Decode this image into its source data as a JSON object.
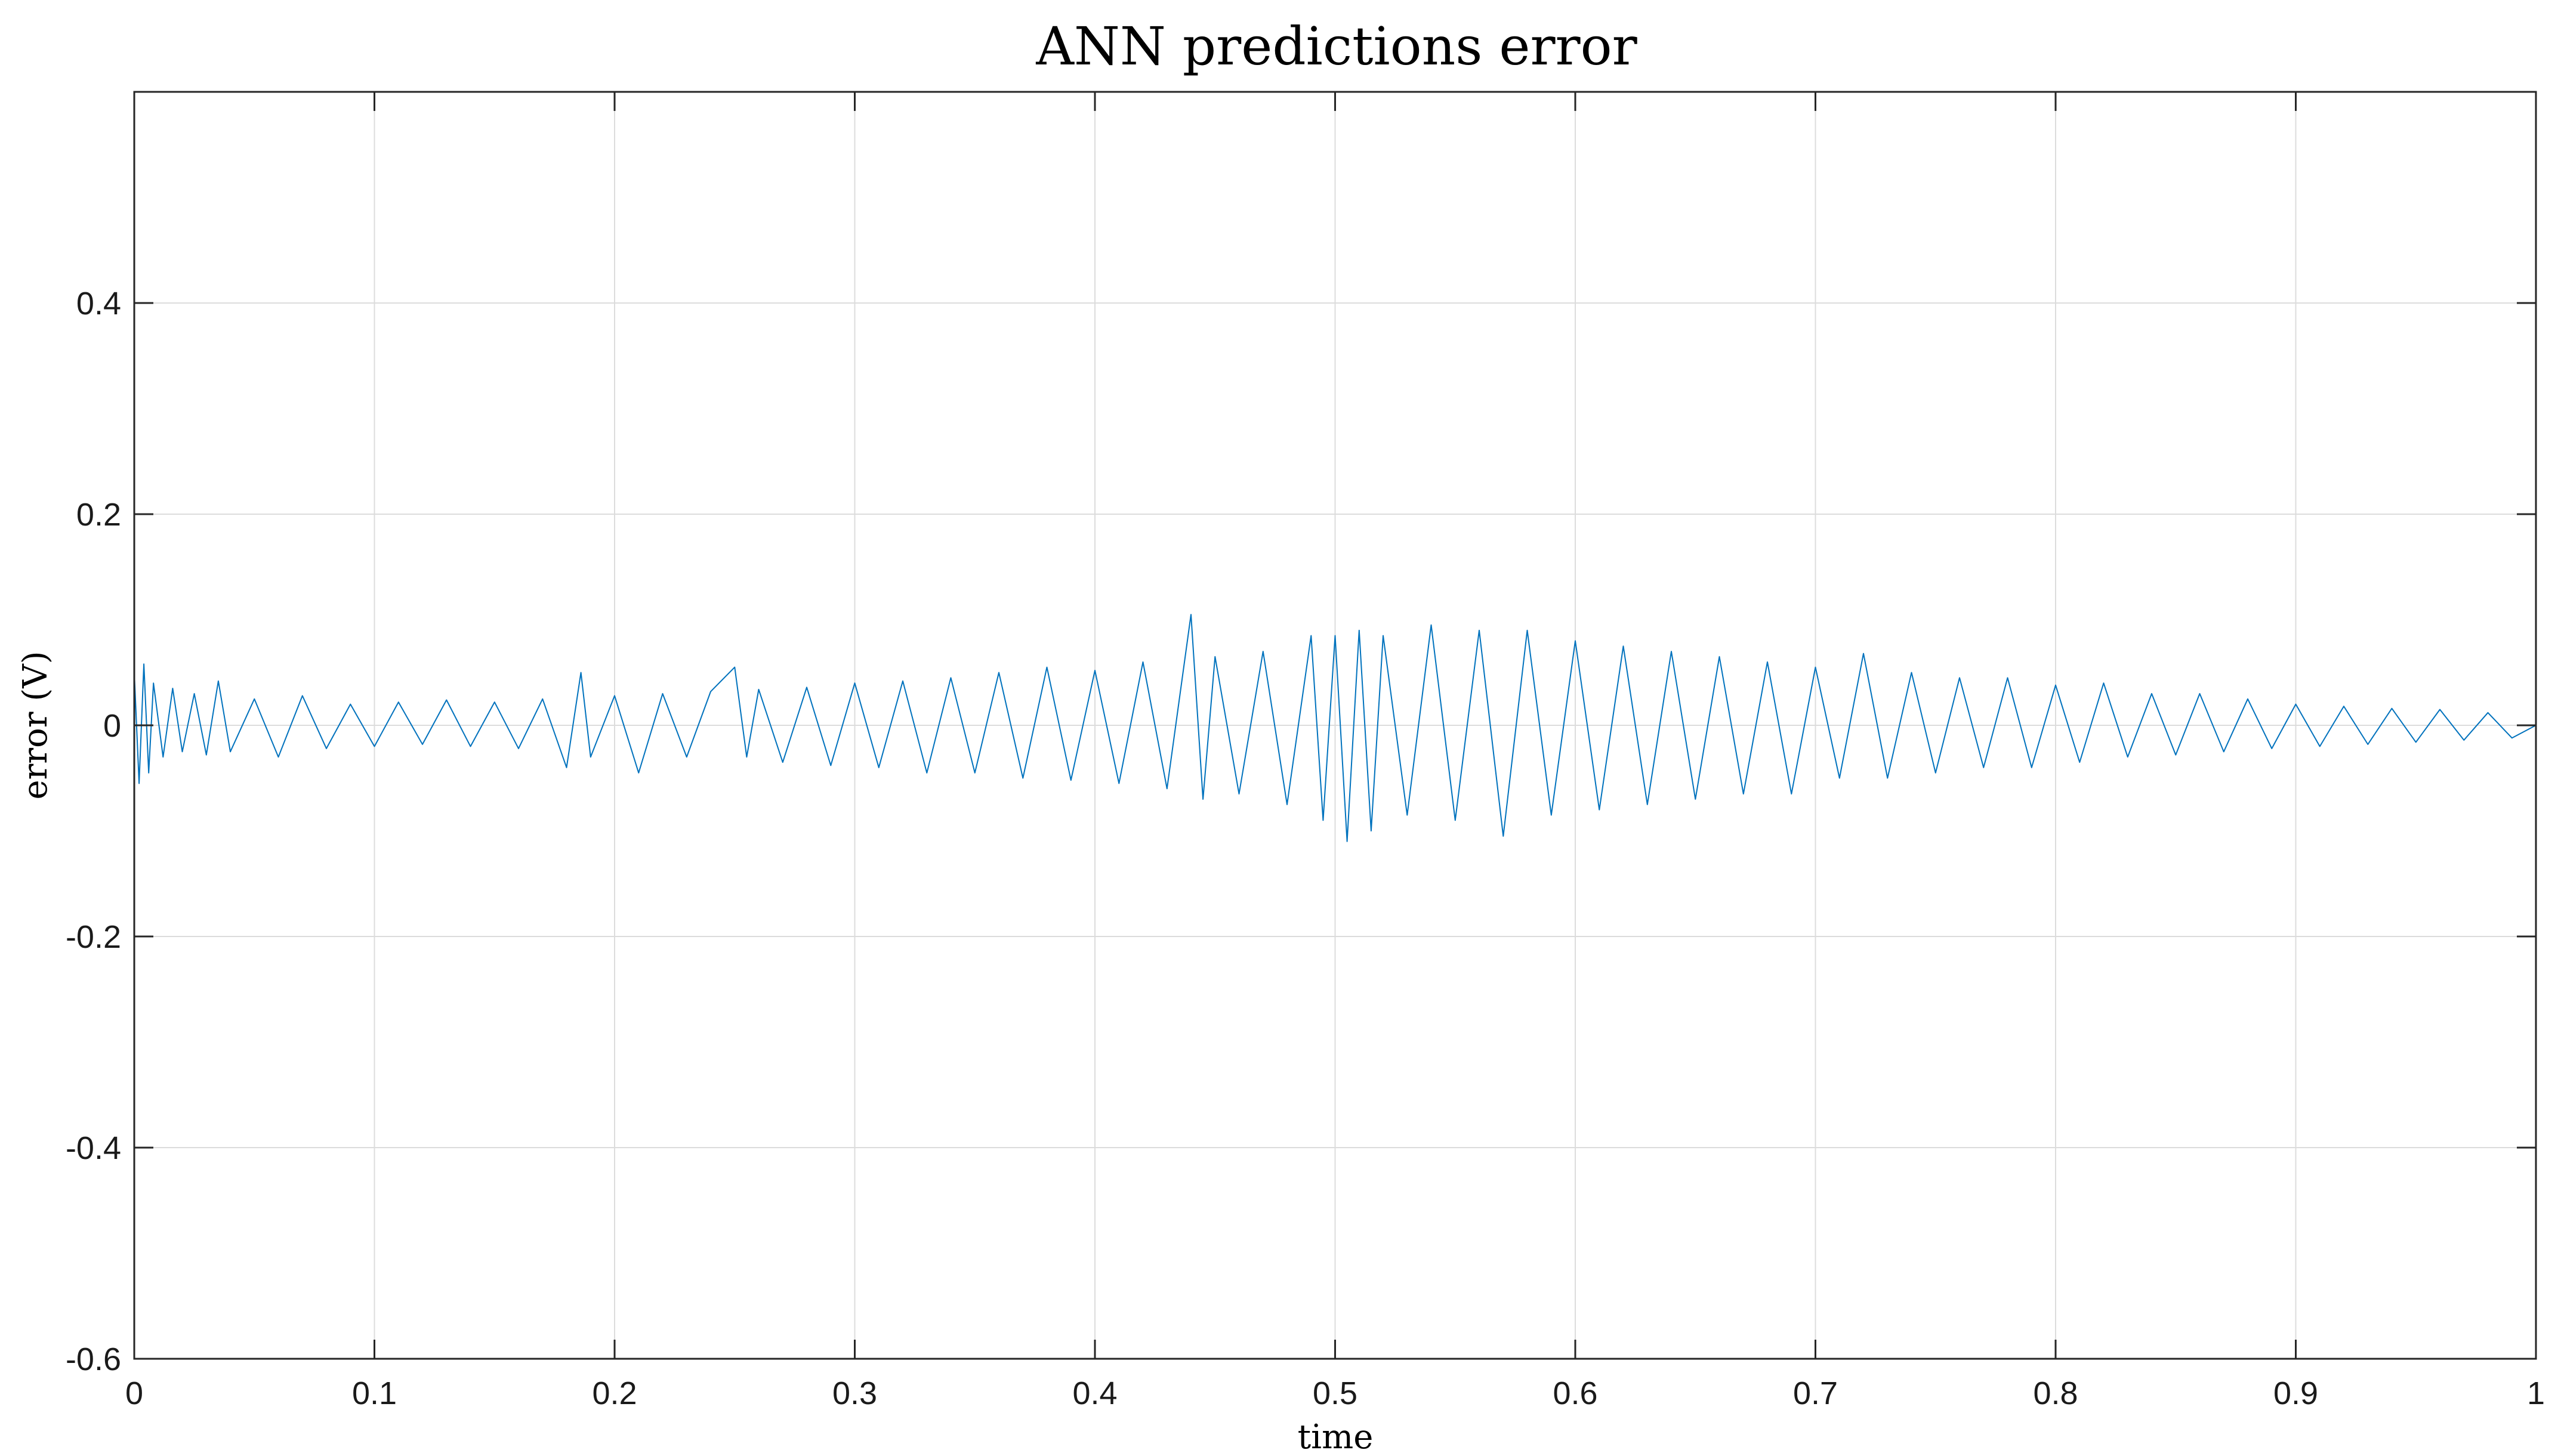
{
  "chart_data": {
    "type": "line",
    "title": "ANN predictions error",
    "xlabel": "time",
    "ylabel": "error (V)",
    "xlim": [
      0,
      1
    ],
    "ylim": [
      -0.6,
      0.6
    ],
    "xticks": [
      0,
      0.1,
      0.2,
      0.3,
      0.4,
      0.5,
      0.6,
      0.7,
      0.8,
      0.9,
      1
    ],
    "yticks": [
      -0.6,
      -0.4,
      -0.2,
      0,
      0.2,
      0.4
    ],
    "xtick_labels": [
      "0",
      "0.1",
      "0.2",
      "0.3",
      "0.4",
      "0.5",
      "0.6",
      "0.7",
      "0.8",
      "0.9",
      "1"
    ],
    "ytick_labels": [
      "-0.6",
      "-0.4",
      "-0.2",
      "0",
      "0.2",
      "0.4"
    ],
    "grid": true,
    "series_color": "#0072bd",
    "series": [
      {
        "points": [
          [
            0.0,
            0.05
          ],
          [
            0.002,
            -0.055
          ],
          [
            0.004,
            0.058
          ],
          [
            0.006,
            -0.045
          ],
          [
            0.008,
            0.04
          ],
          [
            0.012,
            -0.03
          ],
          [
            0.016,
            0.035
          ],
          [
            0.02,
            -0.025
          ],
          [
            0.025,
            0.03
          ],
          [
            0.03,
            -0.028
          ],
          [
            0.035,
            0.042
          ],
          [
            0.04,
            -0.025
          ],
          [
            0.05,
            0.025
          ],
          [
            0.06,
            -0.03
          ],
          [
            0.07,
            0.028
          ],
          [
            0.08,
            -0.022
          ],
          [
            0.09,
            0.02
          ],
          [
            0.1,
            -0.02
          ],
          [
            0.11,
            0.022
          ],
          [
            0.12,
            -0.018
          ],
          [
            0.13,
            0.024
          ],
          [
            0.14,
            -0.02
          ],
          [
            0.15,
            0.022
          ],
          [
            0.16,
            -0.022
          ],
          [
            0.17,
            0.025
          ],
          [
            0.18,
            -0.04
          ],
          [
            0.186,
            0.05
          ],
          [
            0.19,
            -0.03
          ],
          [
            0.2,
            0.028
          ],
          [
            0.21,
            -0.045
          ],
          [
            0.22,
            0.03
          ],
          [
            0.23,
            -0.03
          ],
          [
            0.24,
            0.032
          ],
          [
            0.25,
            0.055
          ],
          [
            0.255,
            -0.03
          ],
          [
            0.26,
            0.034
          ],
          [
            0.27,
            -0.035
          ],
          [
            0.28,
            0.036
          ],
          [
            0.29,
            -0.038
          ],
          [
            0.3,
            0.04
          ],
          [
            0.31,
            -0.04
          ],
          [
            0.32,
            0.042
          ],
          [
            0.33,
            -0.045
          ],
          [
            0.34,
            0.045
          ],
          [
            0.35,
            -0.045
          ],
          [
            0.36,
            0.05
          ],
          [
            0.37,
            -0.05
          ],
          [
            0.38,
            0.055
          ],
          [
            0.39,
            -0.052
          ],
          [
            0.4,
            0.052
          ],
          [
            0.41,
            -0.055
          ],
          [
            0.42,
            0.06
          ],
          [
            0.43,
            -0.06
          ],
          [
            0.44,
            0.105
          ],
          [
            0.445,
            -0.07
          ],
          [
            0.45,
            0.065
          ],
          [
            0.46,
            -0.065
          ],
          [
            0.47,
            0.07
          ],
          [
            0.48,
            -0.075
          ],
          [
            0.49,
            0.085
          ],
          [
            0.495,
            -0.09
          ],
          [
            0.5,
            0.085
          ],
          [
            0.505,
            -0.11
          ],
          [
            0.51,
            0.09
          ],
          [
            0.515,
            -0.1
          ],
          [
            0.52,
            0.085
          ],
          [
            0.53,
            -0.085
          ],
          [
            0.54,
            0.095
          ],
          [
            0.55,
            -0.09
          ],
          [
            0.56,
            0.09
          ],
          [
            0.57,
            -0.105
          ],
          [
            0.58,
            0.09
          ],
          [
            0.59,
            -0.085
          ],
          [
            0.6,
            0.08
          ],
          [
            0.61,
            -0.08
          ],
          [
            0.62,
            0.075
          ],
          [
            0.63,
            -0.075
          ],
          [
            0.64,
            0.07
          ],
          [
            0.65,
            -0.07
          ],
          [
            0.66,
            0.065
          ],
          [
            0.67,
            -0.065
          ],
          [
            0.68,
            0.06
          ],
          [
            0.69,
            -0.065
          ],
          [
            0.7,
            0.055
          ],
          [
            0.71,
            -0.05
          ],
          [
            0.72,
            0.068
          ],
          [
            0.73,
            -0.05
          ],
          [
            0.74,
            0.05
          ],
          [
            0.75,
            -0.045
          ],
          [
            0.76,
            0.045
          ],
          [
            0.77,
            -0.04
          ],
          [
            0.78,
            0.045
          ],
          [
            0.79,
            -0.04
          ],
          [
            0.8,
            0.038
          ],
          [
            0.81,
            -0.035
          ],
          [
            0.82,
            0.04
          ],
          [
            0.83,
            -0.03
          ],
          [
            0.84,
            0.03
          ],
          [
            0.85,
            -0.028
          ],
          [
            0.86,
            0.03
          ],
          [
            0.87,
            -0.025
          ],
          [
            0.88,
            0.025
          ],
          [
            0.89,
            -0.022
          ],
          [
            0.9,
            0.02
          ],
          [
            0.91,
            -0.02
          ],
          [
            0.92,
            0.018
          ],
          [
            0.93,
            -0.018
          ],
          [
            0.94,
            0.016
          ],
          [
            0.95,
            -0.016
          ],
          [
            0.96,
            0.015
          ],
          [
            0.97,
            -0.014
          ],
          [
            0.98,
            0.012
          ],
          [
            0.99,
            -0.012
          ],
          [
            1.0,
            0.0
          ]
        ]
      }
    ]
  }
}
